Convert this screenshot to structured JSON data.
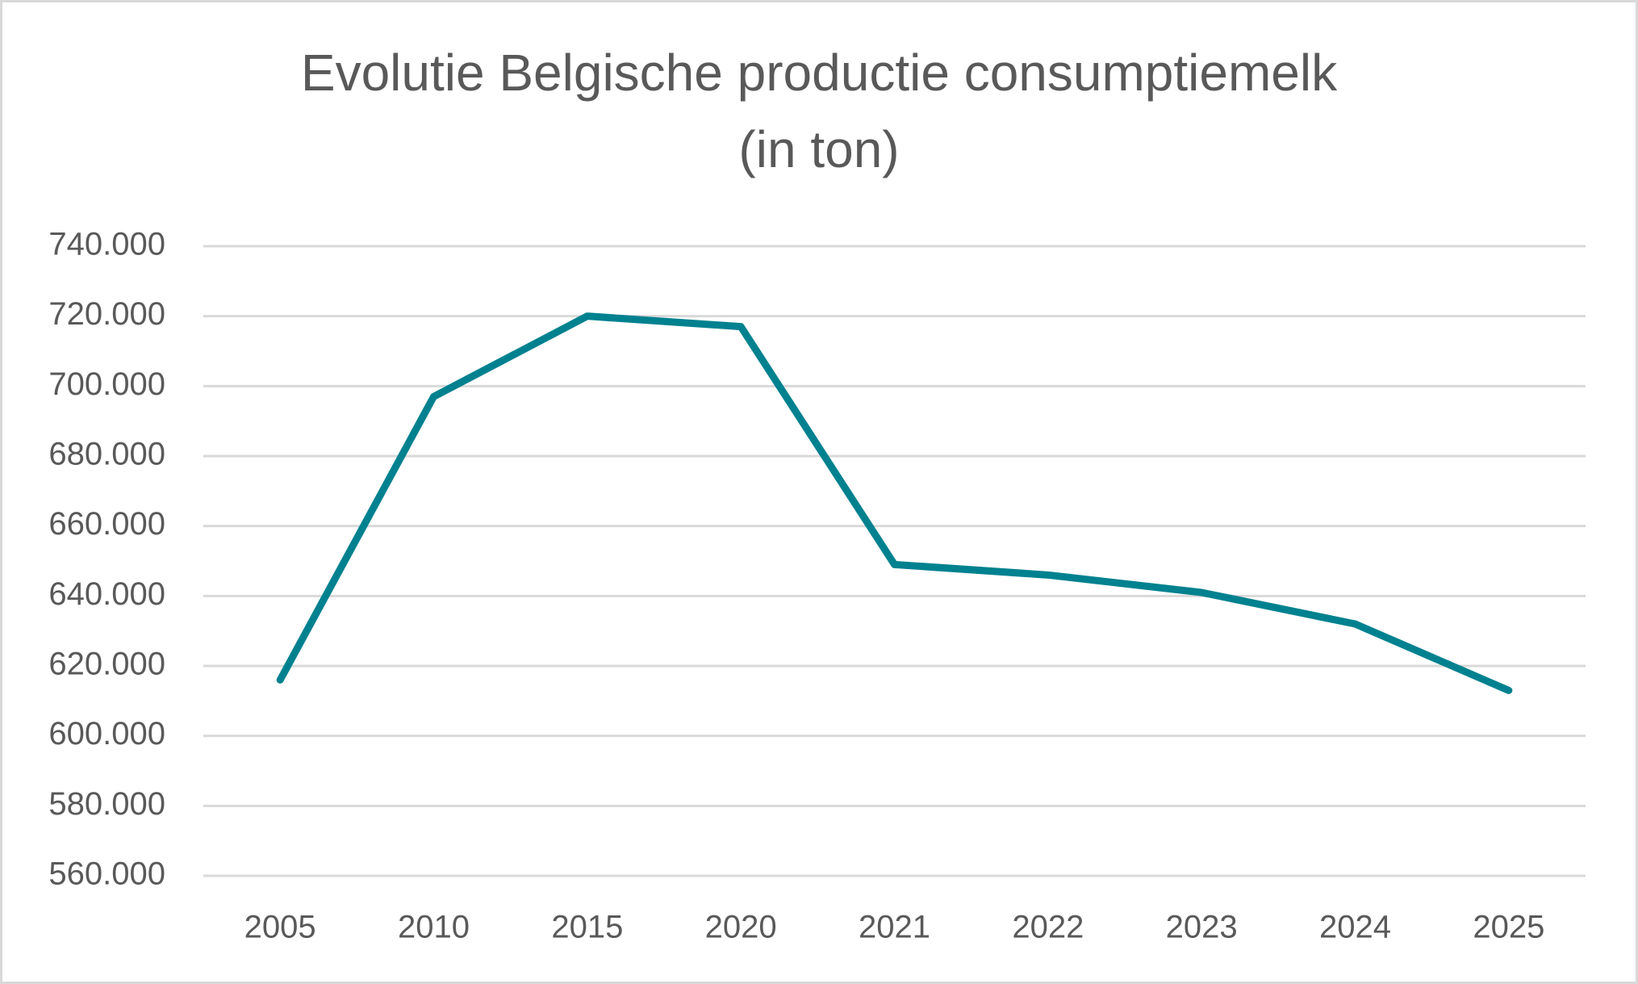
{
  "chart_data": {
    "type": "line",
    "title": [
      "Evolutie Belgische productie consumptiemelk",
      "(in ton)"
    ],
    "categories": [
      "2005",
      "2010",
      "2015",
      "2020",
      "2021",
      "2022",
      "2023",
      "2024",
      "2025"
    ],
    "series": [
      {
        "color": "#00818f",
        "values": [
          616000,
          697000,
          720000,
          717000,
          649000,
          646000,
          641000,
          632000,
          613000
        ]
      }
    ],
    "ylim": [
      560000,
      740000
    ],
    "yticks": [
      {
        "value": 560000,
        "label": "560.000"
      },
      {
        "value": 580000,
        "label": "580.000"
      },
      {
        "value": 600000,
        "label": "600.000"
      },
      {
        "value": 620000,
        "label": "620.000"
      },
      {
        "value": 640000,
        "label": "640.000"
      },
      {
        "value": 660000,
        "label": "660.000"
      },
      {
        "value": 680000,
        "label": "680.000"
      },
      {
        "value": 700000,
        "label": "700.000"
      },
      {
        "value": 720000,
        "label": "720.000"
      },
      {
        "value": 740000,
        "label": "740.000"
      }
    ],
    "grid": true
  }
}
